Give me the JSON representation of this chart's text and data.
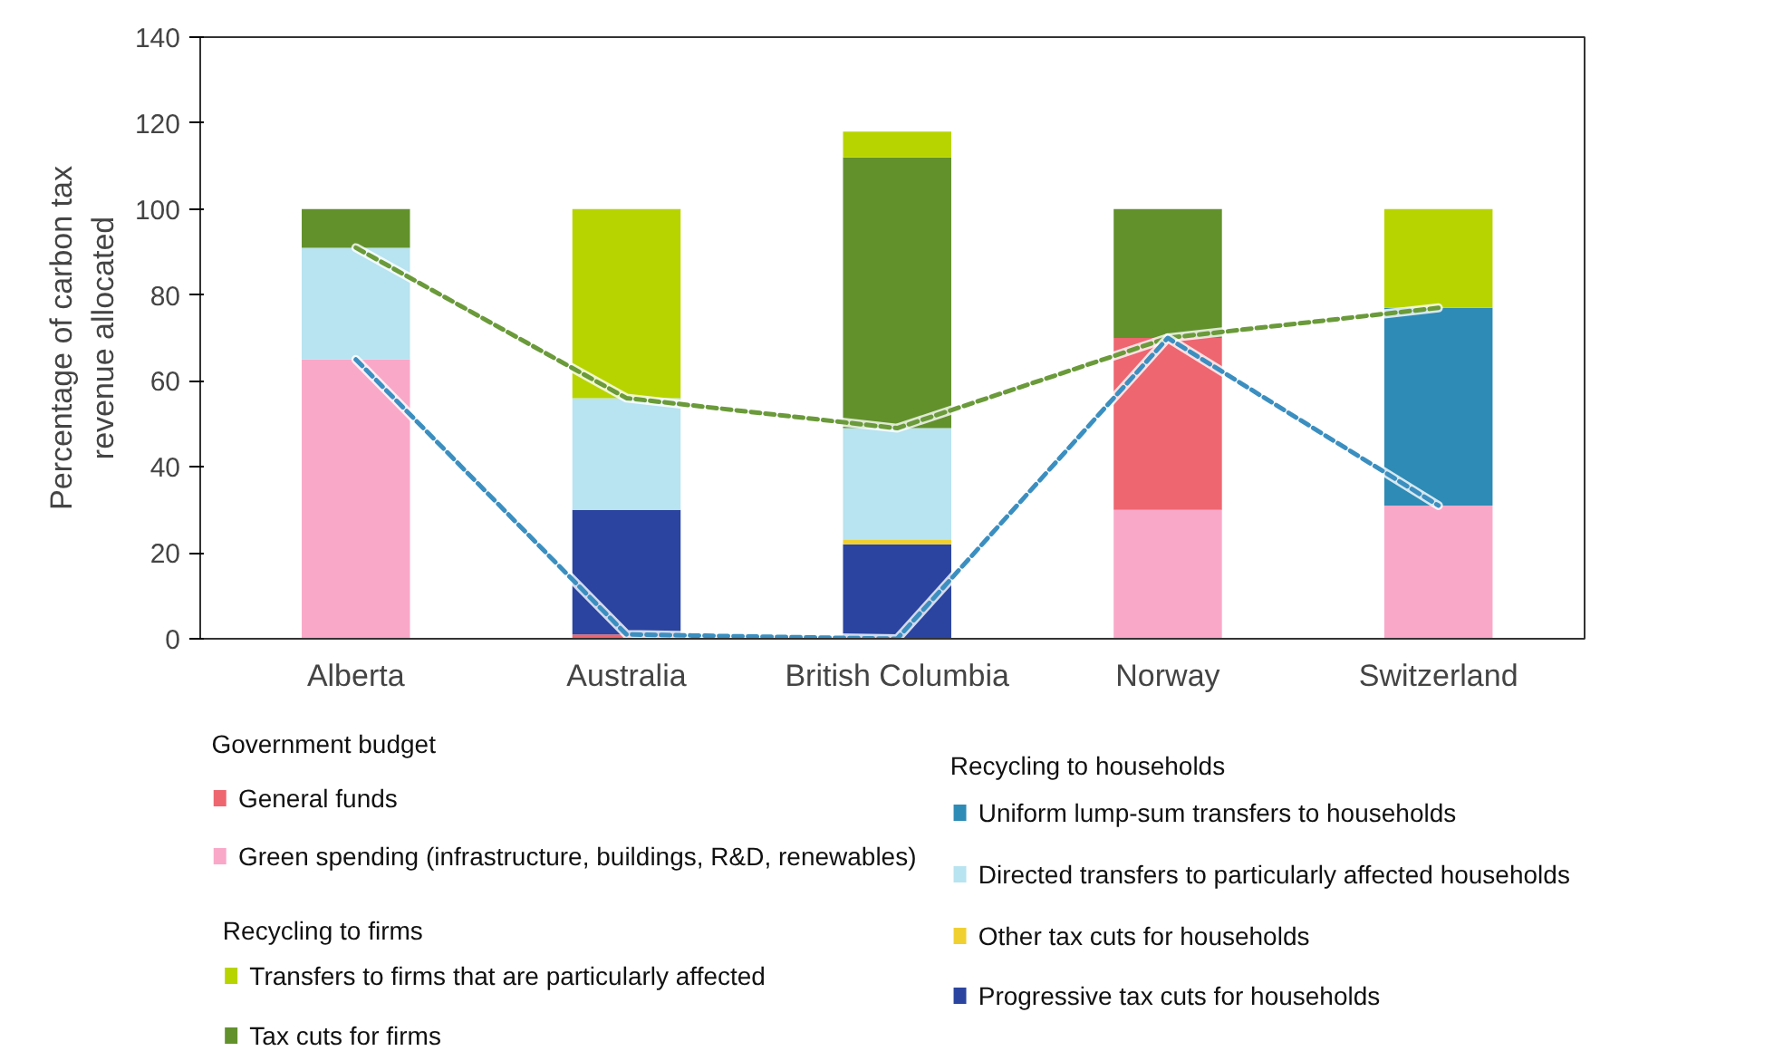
{
  "chart_data": {
    "type": "bar",
    "stacked": true,
    "ylabel": "Percentage of carbon tax revenue allocated",
    "categories": [
      "Alberta",
      "Australia",
      "British Columbia",
      "Norway",
      "Switzerland"
    ],
    "ylim": [
      0,
      140
    ],
    "yticks": [
      0,
      20,
      40,
      60,
      80,
      100,
      120,
      140
    ],
    "grid": false,
    "legend": "bottom",
    "annotations": [
      "Government budget",
      "Recycling to firms",
      "Recycling to households"
    ],
    "series": [
      {
        "name": "Green spending (infrastructure, buildings, R&D, renewables)",
        "color": "#f9a8c8",
        "values": [
          65,
          0,
          0,
          30,
          31
        ]
      },
      {
        "name": "General funds",
        "color": "#ee6670",
        "values": [
          0,
          1,
          0,
          40,
          0
        ]
      },
      {
        "name": "Progressive tax cuts for households",
        "color": "#2a44a0",
        "values": [
          0,
          29,
          22,
          0,
          0
        ]
      },
      {
        "name": "Other tax cuts for households",
        "color": "#f0d030",
        "values": [
          0,
          0,
          1,
          0,
          0
        ]
      },
      {
        "name": "Directed transfers to particularly affected households",
        "color": "#b8e3f0",
        "values": [
          26,
          26,
          26,
          0,
          0
        ]
      },
      {
        "name": "Uniform lump-sum transfers to households",
        "color": "#2e8bb5",
        "values": [
          0,
          0,
          0,
          0,
          46
        ]
      },
      {
        "name": "Tax cuts for firms",
        "color": "#62912c",
        "values": [
          9,
          0,
          63,
          30,
          0
        ]
      },
      {
        "name": "Transfers to firms that are particularly affected",
        "color": "#b8d400",
        "values": [
          0,
          44,
          6,
          0,
          23
        ]
      },
      {
        "type": "line",
        "line_style": "dashed",
        "color": "#6a9a3a",
        "values": [
          91,
          56,
          49,
          70,
          77
        ]
      },
      {
        "type": "line",
        "line_style": "dashed",
        "color": "#3b8fc0",
        "values": [
          65,
          1,
          0,
          70,
          31
        ]
      }
    ]
  }
}
